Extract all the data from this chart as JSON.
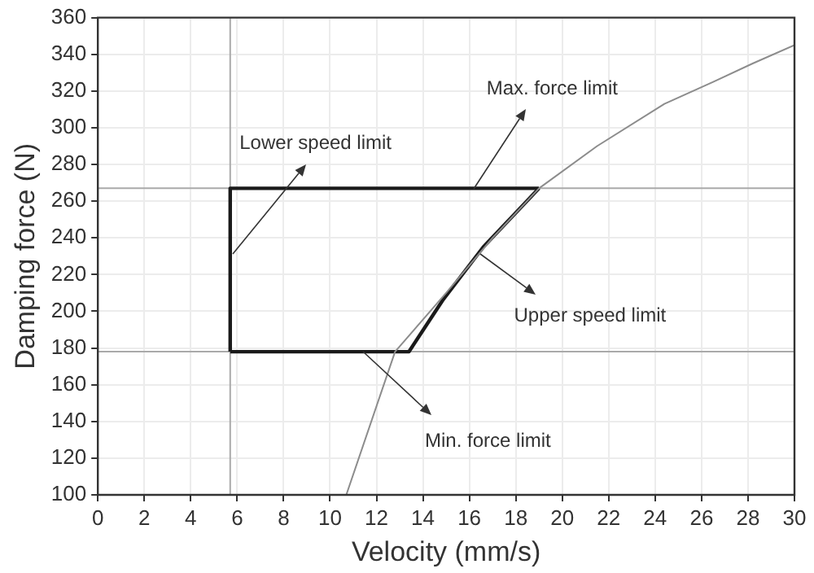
{
  "chart_data": {
    "type": "line",
    "xlabel": "Velocity (mm/s)",
    "ylabel": "Damping force (N)",
    "xlim": [
      0,
      30
    ],
    "xticks": [
      0,
      2,
      4,
      6,
      8,
      10,
      12,
      14,
      16,
      18,
      20,
      22,
      24,
      26,
      28,
      30
    ],
    "ylim": [
      100,
      360
    ],
    "yticks": [
      100,
      120,
      140,
      160,
      180,
      200,
      220,
      240,
      260,
      280,
      300,
      320,
      340,
      360
    ],
    "grid": true,
    "legend": false,
    "marker": "none",
    "series": [
      {
        "color": "#8c8c8c",
        "x": [
          10.7,
          12.8,
          15,
          17,
          19,
          21.5,
          24.4,
          26.5,
          28.2,
          30
        ],
        "values": [
          100,
          178,
          210,
          240,
          267,
          290,
          313,
          325,
          335,
          345
        ]
      },
      {
        "color": "#1a1a1a",
        "x": [
          5.7,
          5.7,
          19
        ],
        "values": [
          178,
          267,
          267
        ]
      },
      {
        "color": "#1a1a1a",
        "x": [
          5.7,
          13.4,
          14.85,
          16.6,
          19
        ],
        "values": [
          178,
          178,
          206,
          235,
          267
        ]
      }
    ],
    "ref_lines": [
      {
        "axis": "x",
        "value": 5.7,
        "color": "#aaaaaa"
      },
      {
        "axis": "y",
        "value": 267,
        "color": "#aaaaaa"
      },
      {
        "axis": "y",
        "value": 178,
        "color": "#aaaaaa"
      }
    ],
    "annotations": [
      {
        "text": "Lower speed limit",
        "x": 5.8,
        "y": 231
      },
      {
        "text": "Max. force limit",
        "x": 16.2,
        "y": 267
      },
      {
        "text": "Upper speed limit",
        "x": 16.5,
        "y": 231
      },
      {
        "text": "Min. force limit",
        "x": 11.4,
        "y": 178
      }
    ]
  }
}
